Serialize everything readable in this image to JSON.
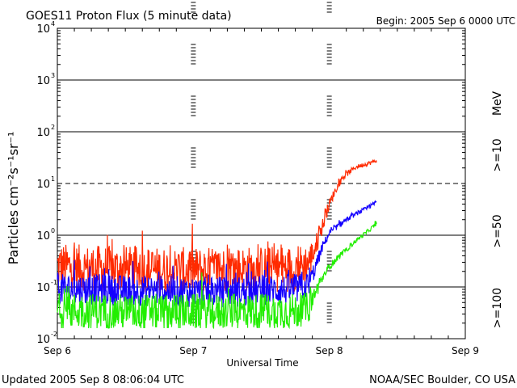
{
  "header": {
    "title": "GOES11 Proton Flux (5 minute data)",
    "begin": "Begin: 2005 Sep 6 0000 UTC"
  },
  "footer": {
    "updated": "Updated 2005 Sep  8 08:06:04 UTC",
    "credit": "NOAA/SEC Boulder, CO USA"
  },
  "legend": {
    "unit": "MeV",
    "ge10": ">=10",
    "ge50": ">=50",
    "ge100": ">=100"
  },
  "colors": {
    "ge10": "#ff2a00",
    "ge50": "#1400ff",
    "ge100": "#22ee00"
  },
  "chart_data": {
    "type": "line",
    "title": "GOES11 Proton Flux (5 minute data)",
    "xlabel": "Universal Time",
    "ylabel": "Particles cm⁻²s⁻¹sr⁻¹",
    "yscale": "log",
    "ylim": [
      0.01,
      10000
    ],
    "xlim": [
      "2005-09-06",
      "2005-09-09"
    ],
    "x_ticks": [
      "Sep 6",
      "Sep 7",
      "Sep 8",
      "Sep 9"
    ],
    "y_ticks": [
      {
        "base": "10",
        "exp": "-2"
      },
      {
        "base": "10",
        "exp": "-1"
      },
      {
        "base": "10",
        "exp": "0"
      },
      {
        "base": "10",
        "exp": "1"
      },
      {
        "base": "10",
        "exp": "2"
      },
      {
        "base": "10",
        "exp": "3"
      },
      {
        "base": "10",
        "exp": "4"
      }
    ],
    "threshold_line": 10,
    "series": [
      {
        "name": ">=10",
        "key": "ge10",
        "x_days": [
          0.0,
          0.25,
          0.5,
          0.75,
          1.0,
          1.25,
          1.5,
          1.75,
          1.85,
          1.9,
          1.95,
          2.0,
          2.05,
          2.1,
          2.15,
          2.2,
          2.3,
          2.35
        ],
        "baseline": [
          0.25,
          0.23,
          0.22,
          0.21,
          0.21,
          0.22,
          0.22,
          0.23,
          0.3,
          0.6,
          1.5,
          4.0,
          8.0,
          13,
          17,
          21,
          25,
          28
        ],
        "noise_amp": [
          0.45,
          0.45,
          0.45,
          0.45,
          0.45,
          0.45,
          0.45,
          0.45,
          0.35,
          0.25,
          0.15,
          0.1,
          0.08,
          0.06,
          0.05,
          0.04,
          0.04,
          0.04
        ]
      },
      {
        "name": ">=50",
        "key": "ge50",
        "x_days": [
          0.0,
          0.25,
          0.5,
          0.75,
          1.0,
          1.25,
          1.5,
          1.75,
          1.85,
          1.9,
          1.95,
          2.0,
          2.1,
          2.2,
          2.3,
          2.35
        ],
        "baseline": [
          0.09,
          0.09,
          0.085,
          0.085,
          0.08,
          0.08,
          0.085,
          0.09,
          0.11,
          0.25,
          0.6,
          1.1,
          1.8,
          2.6,
          3.6,
          4.5
        ],
        "noise_amp": [
          0.3,
          0.3,
          0.3,
          0.3,
          0.3,
          0.3,
          0.3,
          0.3,
          0.25,
          0.15,
          0.1,
          0.06,
          0.05,
          0.04,
          0.04,
          0.04
        ]
      },
      {
        "name": ">=100",
        "key": "ge100",
        "x_days": [
          0.0,
          0.25,
          0.5,
          0.75,
          1.0,
          1.25,
          1.5,
          1.75,
          1.85,
          1.9,
          1.95,
          2.0,
          2.1,
          2.2,
          2.3,
          2.35
        ],
        "baseline": [
          0.035,
          0.034,
          0.033,
          0.033,
          0.033,
          0.033,
          0.034,
          0.034,
          0.04,
          0.08,
          0.15,
          0.25,
          0.45,
          0.8,
          1.3,
          1.7
        ],
        "noise_amp": [
          0.35,
          0.35,
          0.35,
          0.35,
          0.35,
          0.35,
          0.35,
          0.35,
          0.3,
          0.15,
          0.1,
          0.07,
          0.05,
          0.04,
          0.04,
          0.04
        ]
      }
    ]
  }
}
